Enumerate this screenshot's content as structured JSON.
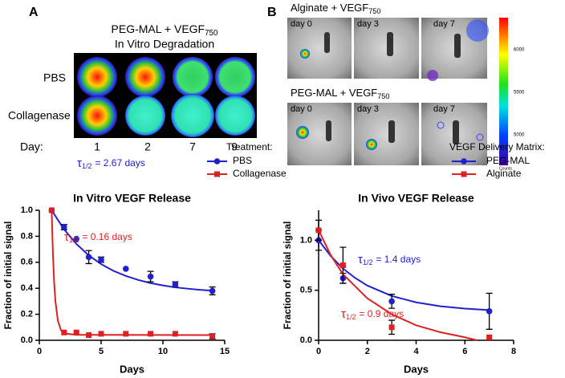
{
  "panel_a": {
    "label": "A",
    "title": {
      "text": "PEG-MAL  + VEGF",
      "subscript": "750"
    },
    "subtitle": "In Vitro Degradation",
    "rows": [
      "PBS",
      "Collagenase"
    ],
    "day_label": "Day:",
    "days": [
      1,
      2,
      7,
      9
    ]
  },
  "panel_b": {
    "label": "B",
    "groups": [
      {
        "title": {
          "text": "Alginate + VEGF",
          "subscript": "750"
        },
        "days": [
          "day 0",
          "day 3",
          "day 7"
        ]
      },
      {
        "title": {
          "text": "PEG-MAL + VEGF",
          "subscript": "750"
        },
        "days": [
          "day 0",
          "day 3",
          "day 7"
        ]
      }
    ],
    "colorbar": {
      "ticks": [
        6000,
        5500,
        5000
      ],
      "label": "Counts"
    }
  },
  "chart_data": [
    {
      "type": "line",
      "title": "In Vitro VEGF Release",
      "x_label": "Days",
      "y_label": "Fraction of initial signal",
      "xlim": [
        0,
        15
      ],
      "xticks": [
        0,
        5,
        10,
        15
      ],
      "ylim": [
        0,
        1.0
      ],
      "yticks": [
        {
          "value": 0,
          "label": "0.0"
        },
        0.2,
        0.4,
        0.6,
        0.8,
        {
          "value": 1,
          "label": "1.0"
        }
      ],
      "legend_title": "Treatment:",
      "legend": "upper right",
      "series": [
        {
          "name": "PBS",
          "color": "#2020d0",
          "marker": "circle",
          "x": [
            1,
            2,
            3,
            4,
            5,
            7,
            9,
            11,
            14
          ],
          "values": [
            1.0,
            0.87,
            0.78,
            0.64,
            0.62,
            0.55,
            0.49,
            0.43,
            0.38
          ],
          "errors": [
            0,
            0.02,
            0,
            0.05,
            0.02,
            0,
            0.04,
            0.02,
            0.03
          ],
          "fit": {
            "x": [
              1,
              2,
              3,
              4,
              5,
              6,
              7,
              8,
              9,
              10,
              11,
              12,
              13,
              14
            ],
            "values": [
              1.0,
              0.853,
              0.741,
              0.653,
              0.586,
              0.534,
              0.495,
              0.464,
              0.44,
              0.422,
              0.407,
              0.397,
              0.388,
              0.382
            ]
          }
        },
        {
          "name": "Collagenase",
          "color": "#e02020",
          "marker": "square",
          "x": [
            1,
            2,
            3,
            4,
            5,
            7,
            9,
            11,
            14
          ],
          "values": [
            1.0,
            0.06,
            0.06,
            0.04,
            0.05,
            0.05,
            0.05,
            0.05,
            0.03
          ],
          "errors": [
            0,
            0,
            0,
            0,
            0,
            0,
            0,
            0,
            0.02
          ],
          "fit": {
            "x": [
              1,
              1.1,
              1.2,
              1.3,
              1.5,
              1.75,
              2,
              3,
              14
            ],
            "values": [
              1.0,
              0.664,
              0.446,
              0.304,
              0.151,
              0.078,
              0.053,
              0.042,
              0.04
            ]
          }
        }
      ],
      "annotations": [
        {
          "symbol": "τ",
          "subscript": "1/2",
          "text": "= 2.67 days",
          "color": "#2020d0"
        },
        {
          "symbol": "τ",
          "subscript": "1/2",
          "text": "= 0.16 days",
          "color": "#e02020"
        }
      ]
    },
    {
      "type": "line",
      "title": "In Vivo VEGF Release",
      "x_label": "Days",
      "y_label": "Fraction of initial signal",
      "xlim": [
        0,
        8
      ],
      "xticks": [
        0,
        2,
        4,
        6,
        8
      ],
      "ylim": [
        0,
        1.3
      ],
      "yticks": [
        {
          "value": 0,
          "label": "0.0"
        },
        0.5,
        {
          "value": 1,
          "label": "1.0"
        }
      ],
      "legend_title": "VEGF Delivery Matrix:",
      "legend": "upper right",
      "series": [
        {
          "name": "PEG-MAL",
          "color": "#2020d0",
          "marker": "circle",
          "x": [
            0,
            1,
            3,
            7
          ],
          "values": [
            1.0,
            0.62,
            0.39,
            0.29
          ],
          "errors": [
            0.1,
            0.05,
            0.07,
            0.18
          ],
          "fit": {
            "x": [
              0,
              0.5,
              1,
              1.5,
              2,
              3,
              4,
              5,
              6,
              7
            ],
            "values": [
              1.0,
              0.842,
              0.717,
              0.623,
              0.547,
              0.443,
              0.379,
              0.34,
              0.317,
              0.302
            ]
          }
        },
        {
          "name": "Alginate",
          "color": "#e02020",
          "marker": "square",
          "x": [
            0,
            1,
            3,
            7
          ],
          "values": [
            1.1,
            0.75,
            0.13,
            0.03
          ],
          "errors": [
            0.1,
            0.18,
            0.07,
            0
          ],
          "fit": {
            "x": [
              0,
              0.5,
              1,
              2,
              3,
              4,
              5,
              6,
              6.5
            ],
            "values": [
              1.1,
              0.85,
              0.66,
              0.42,
              0.26,
              0.15,
              0.08,
              0.03,
              0.0
            ]
          }
        }
      ],
      "annotations": [
        {
          "symbol": "τ",
          "subscript": "1/2",
          "text": "= 1.4 days",
          "color": "#2020d0"
        },
        {
          "symbol": "τ",
          "subscript": "1/2",
          "text": "= 0.9 days",
          "color": "#e02020"
        }
      ]
    }
  ]
}
